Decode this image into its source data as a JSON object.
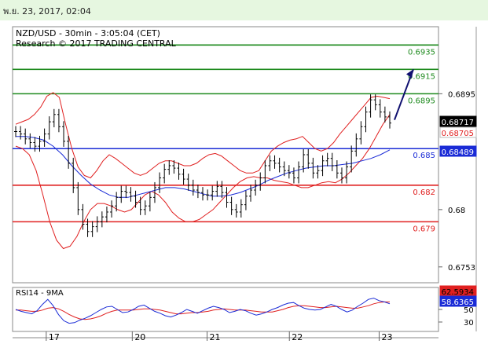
{
  "header": {
    "timestamp": "พ.ย. 23, 2017, 02:04"
  },
  "chart_data": [
    {
      "type": "line",
      "title": "NZD/USD - 30min - 3:05:04 (CET)",
      "subtitle": "Research © 2017 TRADING CENTRAL",
      "x_ticks": [
        "17",
        "20",
        "21",
        "22",
        "23"
      ],
      "y_ticks": [
        0.6895,
        0.68,
        0.6753
      ],
      "ylim": [
        0.674,
        0.695
      ],
      "colors": {
        "price": "#000000",
        "bollinger": "#e02020",
        "ma": "#1a2bd6",
        "resistance": "#1e8a1e",
        "pivot": "#1a2bd6",
        "support": "#e02020",
        "arrow": "#101070"
      },
      "levels": [
        {
          "value": 0.6935,
          "label": "0.6935",
          "kind": "resistance"
        },
        {
          "value": 0.6915,
          "label": "0.6915",
          "kind": "resistance"
        },
        {
          "value": 0.6895,
          "label": "0.6895",
          "kind": "resistance"
        },
        {
          "value": 0.685,
          "label": "0.685",
          "kind": "pivot"
        },
        {
          "value": 0.682,
          "label": "0.682",
          "kind": "support"
        },
        {
          "value": 0.679,
          "label": "0.679",
          "kind": "support"
        }
      ],
      "price_badges": [
        {
          "value": 0.68717,
          "label": "0.68717",
          "bg": "#000000",
          "fg": "#ffffff"
        },
        {
          "value": 0.68705,
          "label": "0.68705",
          "bg": "#ffffff",
          "fg": "#e02020"
        },
        {
          "value": 0.68489,
          "label": "0.68489",
          "bg": "#1a2bd6",
          "fg": "#ffffff"
        }
      ],
      "price_close": [
        0.6864,
        0.6862,
        0.6858,
        0.6855,
        0.6852,
        0.6856,
        0.6862,
        0.6872,
        0.6878,
        0.6868,
        0.6856,
        0.6838,
        0.6818,
        0.68,
        0.6788,
        0.6782,
        0.6786,
        0.679,
        0.6794,
        0.6798,
        0.6803,
        0.681,
        0.6815,
        0.6814,
        0.6811,
        0.6806,
        0.68,
        0.6803,
        0.681,
        0.6818,
        0.6826,
        0.6833,
        0.6836,
        0.6834,
        0.6829,
        0.6825,
        0.682,
        0.6816,
        0.6814,
        0.6812,
        0.6812,
        0.6815,
        0.6819,
        0.6814,
        0.6806,
        0.68,
        0.6798,
        0.6804,
        0.6811,
        0.6816,
        0.682,
        0.6826,
        0.6836,
        0.684,
        0.6838,
        0.6835,
        0.6832,
        0.683,
        0.6826,
        0.6835,
        0.6845,
        0.6838,
        0.683,
        0.6832,
        0.684,
        0.6842,
        0.6836,
        0.683,
        0.6826,
        0.6835,
        0.6848,
        0.6858,
        0.6868,
        0.688,
        0.689,
        0.6886,
        0.688,
        0.6876,
        0.6871
      ],
      "bollinger_upper": [
        0.687,
        0.6872,
        0.6874,
        0.6878,
        0.6884,
        0.6893,
        0.6896,
        0.6892,
        0.687,
        0.685,
        0.6835,
        0.6828,
        0.6826,
        0.6832,
        0.684,
        0.6845,
        0.6842,
        0.6838,
        0.6834,
        0.683,
        0.6828,
        0.683,
        0.6834,
        0.6838,
        0.684,
        0.684,
        0.6838,
        0.6836,
        0.6836,
        0.6838,
        0.6842,
        0.6845,
        0.6846,
        0.6844,
        0.684,
        0.6836,
        0.6832,
        0.683,
        0.683,
        0.6832,
        0.684,
        0.6848,
        0.6852,
        0.6855,
        0.6857,
        0.6858,
        0.686,
        0.6855,
        0.685,
        0.6848,
        0.685,
        0.6855,
        0.6862,
        0.6868,
        0.6874,
        0.688,
        0.6886,
        0.6892,
        0.6893,
        0.6892,
        0.6891
      ],
      "bollinger_lower": [
        0.6852,
        0.685,
        0.6845,
        0.6832,
        0.6812,
        0.679,
        0.6775,
        0.6768,
        0.677,
        0.6778,
        0.679,
        0.68,
        0.6805,
        0.6805,
        0.6803,
        0.68,
        0.6798,
        0.68,
        0.6806,
        0.6812,
        0.6815,
        0.6812,
        0.6806,
        0.6798,
        0.6793,
        0.679,
        0.679,
        0.6792,
        0.6796,
        0.68,
        0.6806,
        0.6812,
        0.6818,
        0.6823,
        0.6826,
        0.6827,
        0.6826,
        0.6826,
        0.6824,
        0.6823,
        0.6822,
        0.682,
        0.6818,
        0.6818,
        0.682,
        0.6822,
        0.6823,
        0.6822,
        0.6825,
        0.683,
        0.6836,
        0.6842,
        0.685,
        0.686,
        0.687,
        0.6878
      ],
      "moving_average": [
        0.686,
        0.686,
        0.6859,
        0.6857,
        0.6852,
        0.6845,
        0.6836,
        0.6828,
        0.6821,
        0.6816,
        0.6812,
        0.681,
        0.681,
        0.6812,
        0.6814,
        0.6816,
        0.6818,
        0.6818,
        0.6817,
        0.6815,
        0.6813,
        0.6811,
        0.6811,
        0.6812,
        0.6814,
        0.6817,
        0.682,
        0.6824,
        0.6827,
        0.683,
        0.6832,
        0.6834,
        0.6835,
        0.6836,
        0.6836,
        0.6837,
        0.6838,
        0.684,
        0.6842,
        0.6845,
        0.6849
      ]
    },
    {
      "type": "line",
      "title": "RSI14 - 9MA",
      "y_ticks": [
        50,
        30
      ],
      "ylim": [
        15,
        85
      ],
      "badges": [
        {
          "value": 62.5934,
          "label": "62.5934",
          "bg": "#e02020",
          "fg": "#000000"
        },
        {
          "value": 58.6365,
          "label": "58.6365",
          "bg": "#1a2bd6",
          "fg": "#ffffff"
        }
      ],
      "rsi": [
        50,
        47,
        45,
        43,
        48,
        58,
        66,
        56,
        42,
        32,
        28,
        29,
        33,
        36,
        40,
        45,
        50,
        54,
        55,
        50,
        45,
        46,
        50,
        55,
        57,
        52,
        47,
        44,
        40,
        38,
        41,
        45,
        50,
        47,
        44,
        48,
        52,
        55,
        53,
        50,
        45,
        47,
        50,
        48,
        44,
        41,
        43,
        46,
        50,
        53,
        57,
        60,
        61,
        56,
        52,
        50,
        49,
        50,
        54,
        58,
        55,
        50,
        46,
        49,
        55,
        60,
        66,
        68,
        64,
        62,
        59
      ],
      "rsi_ma": [
        49,
        49,
        48,
        47,
        47,
        49,
        52,
        53,
        51,
        47,
        42,
        38,
        35,
        34,
        35,
        37,
        40,
        44,
        47,
        49,
        49,
        49,
        49,
        50,
        51,
        51,
        50,
        49,
        47,
        45,
        43,
        43,
        44,
        45,
        45,
        46,
        47,
        49,
        50,
        51,
        50,
        49,
        49,
        49,
        48,
        47,
        46,
        46,
        46,
        48,
        50,
        53,
        55,
        56,
        56,
        55,
        54,
        53,
        53,
        54,
        55,
        54,
        53,
        52,
        52,
        54,
        56,
        59,
        61,
        62,
        62
      ]
    }
  ]
}
